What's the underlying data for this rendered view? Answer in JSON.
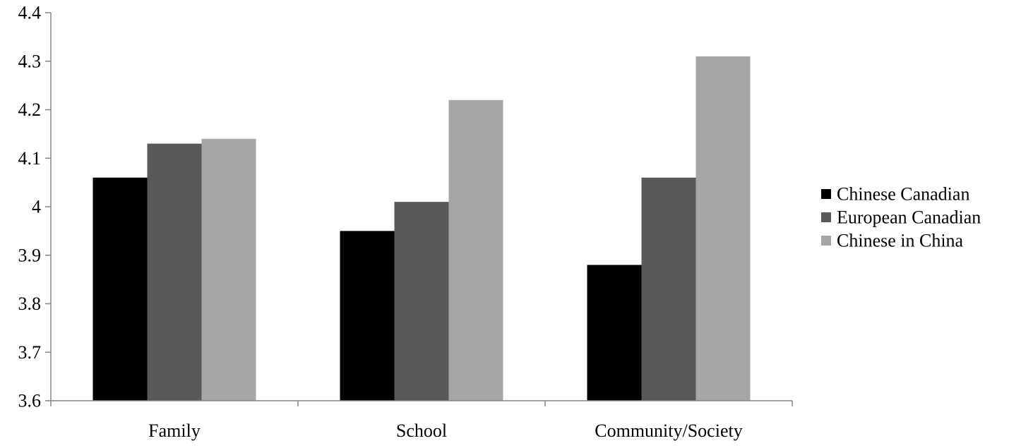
{
  "chart_data": {
    "type": "bar",
    "categories": [
      "Family",
      "School",
      "Community/Society"
    ],
    "series": [
      {
        "name": "Chinese Canadian",
        "values": [
          4.06,
          3.95,
          3.88
        ],
        "color": "#000000"
      },
      {
        "name": "European Canadian",
        "values": [
          4.13,
          4.01,
          4.06
        ],
        "color": "#595959"
      },
      {
        "name": "Chinese in China",
        "values": [
          4.14,
          4.22,
          4.31
        ],
        "color": "#a6a6a6"
      }
    ],
    "ylim": [
      3.6,
      4.4
    ],
    "yticks": [
      "3.6",
      "3.7",
      "3.8",
      "3.9",
      "4",
      "4.1",
      "4.2",
      "4.3",
      "4.4"
    ],
    "ytick_values": [
      3.6,
      3.7,
      3.8,
      3.9,
      4.0,
      4.1,
      4.2,
      4.3,
      4.4
    ],
    "grid": false,
    "legend_position": "right",
    "axis_color": "#868686"
  }
}
